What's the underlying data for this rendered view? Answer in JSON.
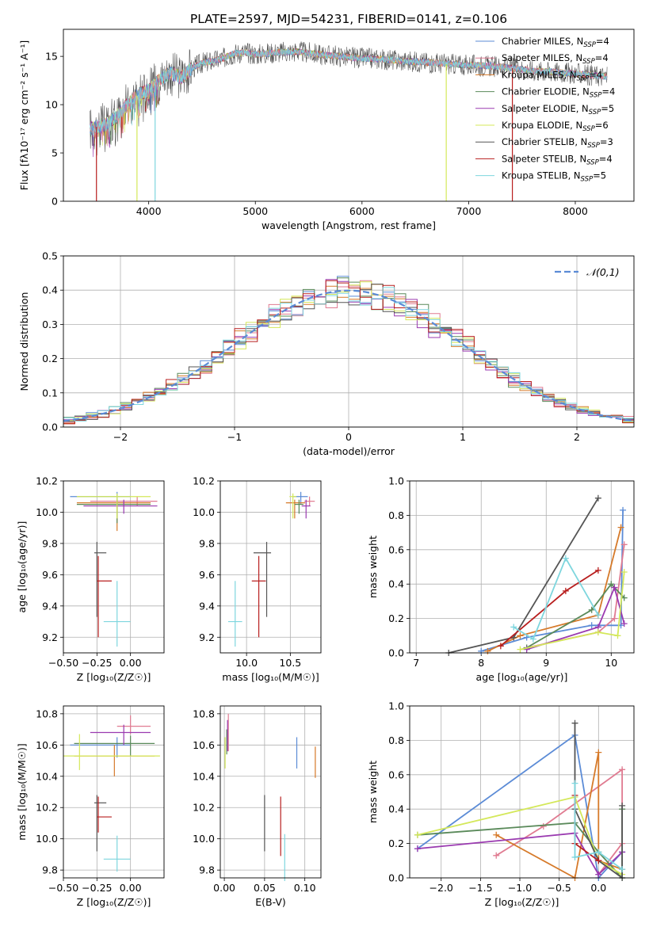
{
  "title": "PLATE=2597, MJD=54231, FIBERID=0141, z=0.106",
  "colors": {
    "Chabrier MILES": "#5b8bd6",
    "Salpeter MILES": "#e07b91",
    "Kroupa MILES": "#d67a2a",
    "Chabrier ELODIE": "#5a8a5a",
    "Salpeter ELODIE": "#9a3ab0",
    "Kroupa ELODIE": "#d4e85a",
    "Chabrier STELIB": "#555555",
    "Salpeter STELIB": "#b81e1e",
    "Kroupa STELIB": "#7ed6de"
  },
  "chart_data": [
    {
      "id": "spectrum",
      "type": "line",
      "xlabel": "wavelength [Angstrom, rest frame]",
      "ylabel": "Flux [fλ10⁻¹⁷ erg cm⁻² s⁻¹ A⁻¹]",
      "xlim": [
        3200,
        8550
      ],
      "ylim": [
        0,
        17.8
      ],
      "xticks": [
        "4000",
        "5000",
        "6000",
        "7000",
        "8000"
      ],
      "yticks": [
        "0",
        "5",
        "10",
        "15"
      ],
      "legend_position": "right",
      "legend": [
        {
          "name": "Chabrier MILES",
          "sub": "SSP",
          "n": "4"
        },
        {
          "name": "Salpeter MILES",
          "sub": "SSP",
          "n": "4"
        },
        {
          "name": "Kroupa MILES",
          "sub": "SSP",
          "n": "4"
        },
        {
          "name": "Chabrier ELODIE",
          "sub": "SSP",
          "n": "4"
        },
        {
          "name": "Salpeter ELODIE",
          "sub": "SSP",
          "n": "5"
        },
        {
          "name": "Kroupa ELODIE",
          "sub": "SSP",
          "n": "6"
        },
        {
          "name": "Chabrier STELIB",
          "sub": "SSP",
          "n": "3"
        },
        {
          "name": "Salpeter STELIB",
          "sub": "SSP",
          "n": "4"
        },
        {
          "name": "Kroupa STELIB",
          "sub": "SSP",
          "n": "5"
        }
      ],
      "continuum": {
        "x": [
          3450,
          3600,
          3700,
          3800,
          3900,
          4000,
          4100,
          4200,
          4300,
          4400,
          4500,
          4600,
          4700,
          4800,
          4900,
          5000,
          5200,
          5400,
          5600,
          5800,
          6000,
          6200,
          6400,
          6600,
          6800,
          7000,
          7200,
          7400,
          7600,
          7800,
          8000,
          8200,
          8300
        ],
        "y": [
          7.5,
          8.0,
          8.8,
          10.0,
          11.0,
          11.5,
          12.5,
          13.3,
          12.8,
          13.7,
          14.3,
          14.5,
          14.8,
          15.3,
          15.4,
          15.2,
          15.4,
          15.5,
          15.2,
          15.0,
          14.8,
          14.7,
          14.5,
          14.4,
          14.2,
          14.1,
          14.0,
          13.8,
          13.5,
          13.4,
          13.2,
          13.0,
          12.9
        ]
      },
      "spikes": [
        {
          "x": 3510,
          "y": 0
        },
        {
          "x": 3890,
          "y": 0
        },
        {
          "x": 4060,
          "y": 0
        },
        {
          "x": 6790,
          "y": 0
        },
        {
          "x": 7410,
          "y": 0
        }
      ]
    },
    {
      "id": "residuals",
      "type": "histogram",
      "xlabel": "(data-model)/error",
      "ylabel": "Normed distribution",
      "xlim": [
        -2.5,
        2.5
      ],
      "ylim": [
        0,
        0.5
      ],
      "xticks": [
        "−2",
        "−1",
        "0",
        "1",
        "2"
      ],
      "yticks": [
        "0.0",
        "0.1",
        "0.2",
        "0.3",
        "0.4",
        "0.5"
      ],
      "bin_width": 0.1,
      "reference": {
        "label": "𝒩(0,1)",
        "mean": 0,
        "sigma": 1
      },
      "grid": true
    },
    {
      "id": "age_vs_Z",
      "type": "errorbar",
      "xlabel": "Z [log₁₀(Z/Z☉)]",
      "ylabel": "age  [log₁₀(age/yr)]",
      "xlim": [
        -0.5,
        0.25
      ],
      "ylim": [
        9.1,
        10.2
      ],
      "xticks": [
        "−0.50",
        "−0.25",
        "0.00"
      ],
      "yticks": [
        "9.2",
        "9.4",
        "9.6",
        "9.8",
        "10.0",
        "10.2"
      ],
      "points": [
        {
          "model": "Chabrier MILES",
          "x": -0.1,
          "xerr": [
            0.35,
            0.1
          ],
          "y": 10.1,
          "yerr": [
            0.05,
            0.03
          ]
        },
        {
          "model": "Salpeter MILES",
          "x": 0.05,
          "xerr": [
            0.35,
            0.15
          ],
          "y": 10.07,
          "yerr": [
            0.03,
            0.03
          ]
        },
        {
          "model": "Kroupa MILES",
          "x": -0.1,
          "xerr": [
            0.3,
            0.25
          ],
          "y": 10.06,
          "yerr": [
            0.18,
            0.02
          ]
        },
        {
          "model": "Chabrier ELODIE",
          "x": -0.1,
          "xerr": [
            0.3,
            0.25
          ],
          "y": 10.05,
          "yerr": [
            0.12,
            0.03
          ]
        },
        {
          "model": "Salpeter ELODIE",
          "x": -0.05,
          "xerr": [
            0.3,
            0.25
          ],
          "y": 10.04,
          "yerr": [
            0.05,
            0.04
          ]
        },
        {
          "model": "Kroupa ELODIE",
          "x": -0.1,
          "xerr": [
            0.3,
            0.25
          ],
          "y": 10.1,
          "yerr": [
            0.14,
            0.02
          ]
        },
        {
          "model": "Chabrier STELIB",
          "x": -0.25,
          "xerr": [
            0.02,
            0.07
          ],
          "y": 9.74,
          "yerr": [
            0.41,
            0.07
          ]
        },
        {
          "model": "Salpeter STELIB",
          "x": -0.24,
          "xerr": [
            0.01,
            0.1
          ],
          "y": 9.56,
          "yerr": [
            0.36,
            0.16
          ]
        },
        {
          "model": "Kroupa STELIB",
          "x": -0.1,
          "xerr": [
            0.1,
            0.1
          ],
          "y": 9.3,
          "yerr": [
            0.16,
            0.26
          ]
        }
      ]
    },
    {
      "id": "age_vs_mass",
      "type": "errorbar",
      "xlabel": "mass [log₁₀(M/M☉)]",
      "ylabel": "",
      "xlim": [
        9.7,
        10.85
      ],
      "ylim": [
        9.1,
        10.2
      ],
      "xticks": [
        "10.0",
        "10.5"
      ],
      "yticks": [
        "9.2",
        "9.4",
        "9.6",
        "9.8",
        "10.0",
        "10.2"
      ],
      "points": [
        {
          "model": "Chabrier MILES",
          "x": 10.62,
          "xerr": [
            0.1,
            0.08
          ],
          "y": 10.1,
          "yerr": [
            0.05,
            0.03
          ]
        },
        {
          "model": "Salpeter MILES",
          "x": 10.72,
          "xerr": [
            0.06,
            0.06
          ],
          "y": 10.07,
          "yerr": [
            0.03,
            0.03
          ]
        },
        {
          "model": "Kroupa MILES",
          "x": 10.55,
          "xerr": [
            0.1,
            0.12
          ],
          "y": 10.06,
          "yerr": [
            0.1,
            0.02
          ]
        },
        {
          "model": "Chabrier ELODIE",
          "x": 10.6,
          "xerr": [
            0.05,
            0.05
          ],
          "y": 10.05,
          "yerr": [
            0.06,
            0.03
          ]
        },
        {
          "model": "Salpeter ELODIE",
          "x": 10.68,
          "xerr": [
            0.05,
            0.05
          ],
          "y": 10.04,
          "yerr": [
            0.08,
            0.04
          ]
        },
        {
          "model": "Kroupa ELODIE",
          "x": 10.53,
          "xerr": [
            0.04,
            0.04
          ],
          "y": 10.1,
          "yerr": [
            0.14,
            0.02
          ]
        },
        {
          "model": "Chabrier STELIB",
          "x": 10.23,
          "xerr": [
            0.15,
            0.05
          ],
          "y": 9.74,
          "yerr": [
            0.41,
            0.07
          ]
        },
        {
          "model": "Salpeter STELIB",
          "x": 10.14,
          "xerr": [
            0.08,
            0.08
          ],
          "y": 9.56,
          "yerr": [
            0.36,
            0.16
          ]
        },
        {
          "model": "Kroupa STELIB",
          "x": 9.87,
          "xerr": [
            0.08,
            0.08
          ],
          "y": 9.3,
          "yerr": [
            0.16,
            0.26
          ]
        }
      ]
    },
    {
      "id": "weight_vs_age",
      "type": "line",
      "xlabel": "age  [log₁₀(age/yr)]",
      "ylabel": "mass weight",
      "xlim": [
        6.9,
        10.35
      ],
      "ylim": [
        0,
        1.0
      ],
      "xticks": [
        "7",
        "8",
        "9",
        "10"
      ],
      "yticks": [
        "0.0",
        "0.2",
        "0.4",
        "0.6",
        "0.8",
        "1.0"
      ],
      "series": [
        {
          "model": "Chabrier MILES",
          "x": [
            8.0,
            8.7,
            9.7,
            10.15,
            10.18
          ],
          "y": [
            0.01,
            0.09,
            0.16,
            0.16,
            0.83
          ]
        },
        {
          "model": "Salpeter MILES",
          "x": [
            8.7,
            9.8,
            10.05,
            10.2
          ],
          "y": [
            0.03,
            0.12,
            0.2,
            0.63
          ]
        },
        {
          "model": "Kroupa MILES",
          "x": [
            8.1,
            8.6,
            9.8,
            10.15
          ],
          "y": [
            0.01,
            0.1,
            0.22,
            0.73
          ]
        },
        {
          "model": "Chabrier ELODIE",
          "x": [
            8.7,
            9.7,
            10.0,
            10.2
          ],
          "y": [
            0.03,
            0.25,
            0.4,
            0.32
          ]
        },
        {
          "model": "Salpeter ELODIE",
          "x": [
            8.7,
            9.8,
            10.05,
            10.2
          ],
          "y": [
            0.02,
            0.15,
            0.38,
            0.17
          ]
        },
        {
          "model": "Kroupa ELODIE",
          "x": [
            8.6,
            9.8,
            10.1,
            10.2
          ],
          "y": [
            0.02,
            0.12,
            0.1,
            0.47
          ]
        },
        {
          "model": "Chabrier STELIB",
          "x": [
            7.5,
            8.5,
            9.8
          ],
          "y": [
            0.0,
            0.09,
            0.9
          ]
        },
        {
          "model": "Salpeter STELIB",
          "x": [
            8.3,
            9.3,
            9.8
          ],
          "y": [
            0.04,
            0.36,
            0.48
          ]
        },
        {
          "model": "Kroupa STELIB",
          "x": [
            8.5,
            8.8,
            9.3,
            9.8
          ],
          "y": [
            0.15,
            0.08,
            0.55,
            0.22
          ]
        }
      ]
    },
    {
      "id": "mass_vs_Z",
      "type": "errorbar",
      "xlabel": "Z [log₁₀(Z/Z☉)]",
      "ylabel": "mass [log₁₀(M/M☉)]",
      "xlim": [
        -0.5,
        0.25
      ],
      "ylim": [
        9.75,
        10.85
      ],
      "xticks": [
        "−0.50",
        "−0.25",
        "0.00"
      ],
      "yticks": [
        "9.8",
        "10.0",
        "10.2",
        "10.4",
        "10.6",
        "10.8"
      ],
      "points": [
        {
          "model": "Chabrier MILES",
          "x": -0.1,
          "xerr": [
            0.35,
            0.1
          ],
          "y": 10.6,
          "yerr": [
            0.08,
            0.05
          ]
        },
        {
          "model": "Salpeter MILES",
          "x": 0.0,
          "xerr": [
            0.1,
            0.15
          ],
          "y": 10.72,
          "yerr": [
            0.05,
            0.07
          ]
        },
        {
          "model": "Kroupa MILES",
          "x": -0.12,
          "xerr": [
            0.3,
            0.3
          ],
          "y": 10.53,
          "yerr": [
            0.13,
            0.07
          ]
        },
        {
          "model": "Chabrier ELODIE",
          "x": 0.0,
          "xerr": [
            0.42,
            0.18
          ],
          "y": 10.61,
          "yerr": [
            0.08,
            0.05
          ]
        },
        {
          "model": "Salpeter ELODIE",
          "x": -0.05,
          "xerr": [
            0.25,
            0.2
          ],
          "y": 10.68,
          "yerr": [
            0.08,
            0.05
          ]
        },
        {
          "model": "Kroupa ELODIE",
          "x": -0.38,
          "xerr": [
            0.12,
            0.6
          ],
          "y": 10.53,
          "yerr": [
            0.09,
            0.14
          ]
        },
        {
          "model": "Chabrier STELIB",
          "x": -0.25,
          "xerr": [
            0.02,
            0.07
          ],
          "y": 10.23,
          "yerr": [
            0.31,
            0.05
          ]
        },
        {
          "model": "Salpeter STELIB",
          "x": -0.24,
          "xerr": [
            0.01,
            0.1
          ],
          "y": 10.14,
          "yerr": [
            0.1,
            0.13
          ]
        },
        {
          "model": "Kroupa STELIB",
          "x": -0.1,
          "xerr": [
            0.1,
            0.1
          ],
          "y": 9.87,
          "yerr": [
            0.08,
            0.15
          ]
        }
      ]
    },
    {
      "id": "mass_vs_ebv",
      "type": "errorbar",
      "xlabel": "E(B-V)",
      "ylabel": "",
      "xlim": [
        -0.005,
        0.12
      ],
      "ylim": [
        9.75,
        10.85
      ],
      "xticks": [
        "0.00",
        "0.05",
        "0.10"
      ],
      "yticks": [
        "9.8",
        "10.0",
        "10.2",
        "10.4",
        "10.6",
        "10.8"
      ],
      "points": [
        {
          "model": "Chabrier MILES",
          "x": 0.09,
          "xerr": [
            0,
            0
          ],
          "y": 10.55,
          "yerr": [
            0.1,
            0.1
          ]
        },
        {
          "model": "Salpeter MILES",
          "x": 0.005,
          "xerr": [
            0,
            0
          ],
          "y": 10.68,
          "yerr": [
            0.12,
            0.12
          ]
        },
        {
          "model": "Kroupa MILES",
          "x": 0.113,
          "xerr": [
            0,
            0
          ],
          "y": 10.49,
          "yerr": [
            0.1,
            0.1
          ]
        },
        {
          "model": "Chabrier ELODIE",
          "x": 0.003,
          "xerr": [
            0,
            0
          ],
          "y": 10.62,
          "yerr": [
            0.08,
            0.08
          ]
        },
        {
          "model": "Salpeter ELODIE",
          "x": 0.004,
          "xerr": [
            0,
            0
          ],
          "y": 10.66,
          "yerr": [
            0.1,
            0.1
          ]
        },
        {
          "model": "Kroupa ELODIE",
          "x": 0.001,
          "xerr": [
            0,
            0
          ],
          "y": 10.55,
          "yerr": [
            0.1,
            0.1
          ]
        },
        {
          "model": "Chabrier STELIB",
          "x": 0.05,
          "xerr": [
            0,
            0
          ],
          "y": 10.1,
          "yerr": [
            0.18,
            0.18
          ]
        },
        {
          "model": "Salpeter STELIB",
          "x": 0.07,
          "xerr": [
            0,
            0
          ],
          "y": 10.08,
          "yerr": [
            0.19,
            0.19
          ]
        },
        {
          "model": "Kroupa STELIB",
          "x": 0.075,
          "xerr": [
            0,
            0
          ],
          "y": 9.88,
          "yerr": [
            0.15,
            0.15
          ]
        }
      ]
    },
    {
      "id": "weight_vs_Z",
      "type": "line",
      "xlabel": "Z [log₁₀(Z/Z☉)]",
      "ylabel": "mass weight",
      "xlim": [
        -2.4,
        0.45
      ],
      "ylim": [
        0,
        1.0
      ],
      "xticks": [
        "−2.0",
        "−1.5",
        "−1.0",
        "−0.5",
        "0.0"
      ],
      "yticks": [
        "0.0",
        "0.2",
        "0.4",
        "0.6",
        "0.8",
        "1.0"
      ],
      "series": [
        {
          "model": "Chabrier MILES",
          "x": [
            -2.3,
            -0.3,
            0.0,
            0.3
          ],
          "y": [
            0.17,
            0.83,
            0.0,
            0.15
          ]
        },
        {
          "model": "Salpeter MILES",
          "x": [
            -1.3,
            -0.7,
            0.3,
            0.3,
            0.0
          ],
          "y": [
            0.13,
            0.3,
            0.63,
            0.2,
            0.02
          ]
        },
        {
          "model": "Kroupa MILES",
          "x": [
            -1.3,
            -0.3,
            0.0,
            0.0,
            0.3
          ],
          "y": [
            0.25,
            0.0,
            0.73,
            0.1,
            0.05
          ]
        },
        {
          "model": "Chabrier ELODIE",
          "x": [
            -2.3,
            -0.3,
            0.0,
            0.3,
            0.3
          ],
          "y": [
            0.25,
            0.32,
            0.15,
            0.0,
            0.4
          ]
        },
        {
          "model": "Salpeter ELODIE",
          "x": [
            -2.3,
            -0.3,
            0.0,
            0.3
          ],
          "y": [
            0.17,
            0.26,
            0.02,
            0.15
          ]
        },
        {
          "model": "Kroupa ELODIE",
          "x": [
            -2.3,
            -0.3,
            0.0,
            0.3
          ],
          "y": [
            0.25,
            0.47,
            0.1,
            0.02
          ]
        },
        {
          "model": "Chabrier STELIB",
          "x": [
            -0.3,
            -0.3,
            0.0,
            0.3,
            0.3
          ],
          "y": [
            0.9,
            0.4,
            0.1,
            0.0,
            0.42
          ]
        },
        {
          "model": "Salpeter STELIB",
          "x": [
            -0.3,
            -0.3,
            0.0
          ],
          "y": [
            0.48,
            0.2,
            0.1
          ]
        },
        {
          "model": "Kroupa STELIB",
          "x": [
            -0.3,
            -0.3,
            0.0,
            0.3
          ],
          "y": [
            0.55,
            0.12,
            0.15,
            0.05
          ]
        }
      ]
    }
  ]
}
